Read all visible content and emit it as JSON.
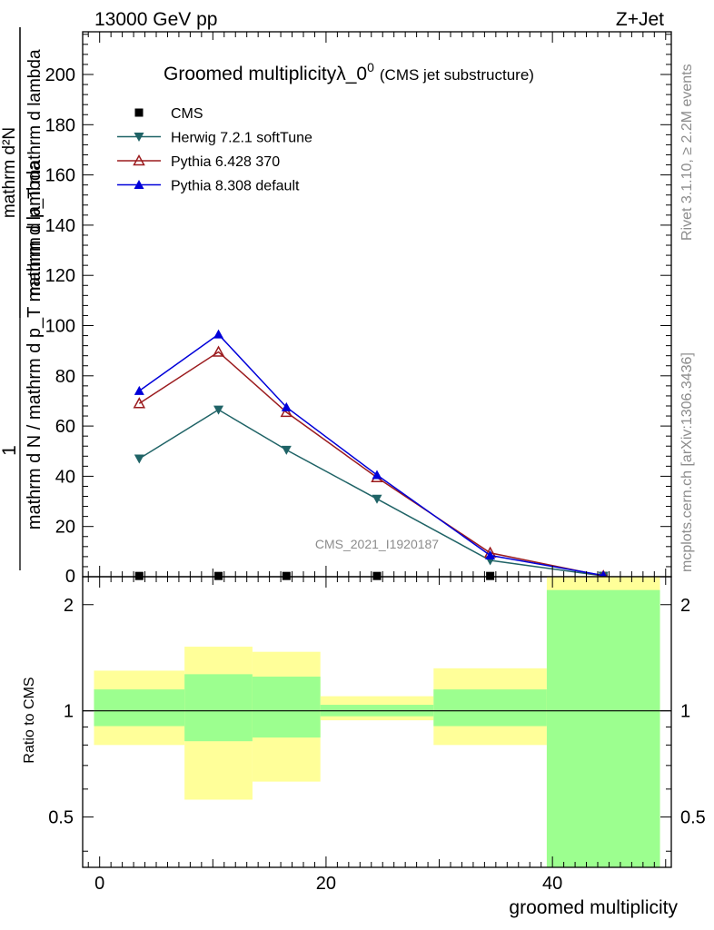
{
  "header": {
    "energy": "13000 GeV pp",
    "process": "Z+Jet"
  },
  "side": {
    "rivet": "Rivet 3.1.10, ≥ 2.2M events",
    "mcplots": "mcplots.cern.ch [arXiv:1306.3436]"
  },
  "watermark": "CMS_2021_I1920187",
  "chart_data": [
    {
      "type": "line",
      "title_main": "Groomed multiplicity",
      "title_lambda": "λ_0",
      "title_sup": "0",
      "title_sub": "(CMS jet substructure)",
      "ylabel_top": "1",
      "ylabel_bottom": "mathrm d N / mathrm d p_T mathrm d lambda",
      "ylabel_frac_num": "mathrm d²N",
      "ylabel_frac_den": "mathrm d p_T mathrm d lambda",
      "xlim": [
        -1.5,
        50.5
      ],
      "ylim": [
        0,
        217
      ],
      "yticks": [
        20,
        40,
        60,
        80,
        100,
        120,
        140,
        160,
        180,
        200
      ],
      "ytick_labels": [
        "20",
        "40",
        "60",
        "80",
        "100",
        "120",
        "140",
        "160",
        "180",
        "200"
      ],
      "extra_ytick_label": "0",
      "x": [
        3.5,
        10.5,
        16.5,
        24.5,
        34.5,
        44.5
      ],
      "series": [
        {
          "name": "CMS",
          "marker": "square",
          "color": "#000000",
          "values": [
            0.3,
            0.3,
            0.3,
            0.3,
            0.3,
            0.3
          ]
        },
        {
          "name": "Herwig 7.2.1 softTune",
          "marker": "triangle-down",
          "color": "#1f6366",
          "values": [
            47,
            66.5,
            50.5,
            31,
            6.5,
            0.3
          ]
        },
        {
          "name": "Pythia 6.428 370",
          "marker": "triangle-up-open",
          "color": "#9b1b1e",
          "values": [
            69,
            89.5,
            65.5,
            39.5,
            9.5,
            0.3
          ]
        },
        {
          "name": "Pythia 8.308 default",
          "marker": "triangle-up",
          "color": "#0000d9",
          "values": [
            74,
            96.5,
            67.5,
            40.5,
            8.5,
            0.5
          ]
        }
      ],
      "legend_position": "top-left"
    },
    {
      "type": "area",
      "ylabel": "Ratio to CMS",
      "xlabel": "groomed multiplicity",
      "yscale": "log",
      "ylim": [
        0.36,
        2.4
      ],
      "yticks": [
        0.5,
        1,
        2
      ],
      "ytick_labels": [
        "0.5",
        "1",
        "2"
      ],
      "xticks": [
        0,
        20,
        40
      ],
      "xtick_labels": [
        "0",
        "20",
        "40"
      ],
      "reference_line": 1,
      "bins": [
        {
          "x": [
            -0.5,
            7.5
          ],
          "inner": [
            0.905,
            1.15
          ],
          "outer": [
            0.8,
            1.3
          ]
        },
        {
          "x": [
            7.5,
            13.5
          ],
          "inner": [
            0.82,
            1.27
          ],
          "outer": [
            0.56,
            1.52
          ]
        },
        {
          "x": [
            13.5,
            19.5
          ],
          "inner": [
            0.84,
            1.25
          ],
          "outer": [
            0.63,
            1.47
          ]
        },
        {
          "x": [
            19.5,
            29.5
          ],
          "inner": [
            0.965,
            1.04
          ],
          "outer": [
            0.94,
            1.1
          ]
        },
        {
          "x": [
            29.5,
            39.5
          ],
          "inner": [
            0.905,
            1.15
          ],
          "outer": [
            0.8,
            1.32
          ]
        },
        {
          "x": [
            39.5,
            49.5
          ],
          "inner": [
            0.36,
            2.2
          ],
          "outer": [
            0.36,
            2.4
          ]
        }
      ],
      "colors": {
        "inner": "#9cff8f",
        "outer": "#ffff99"
      }
    }
  ]
}
